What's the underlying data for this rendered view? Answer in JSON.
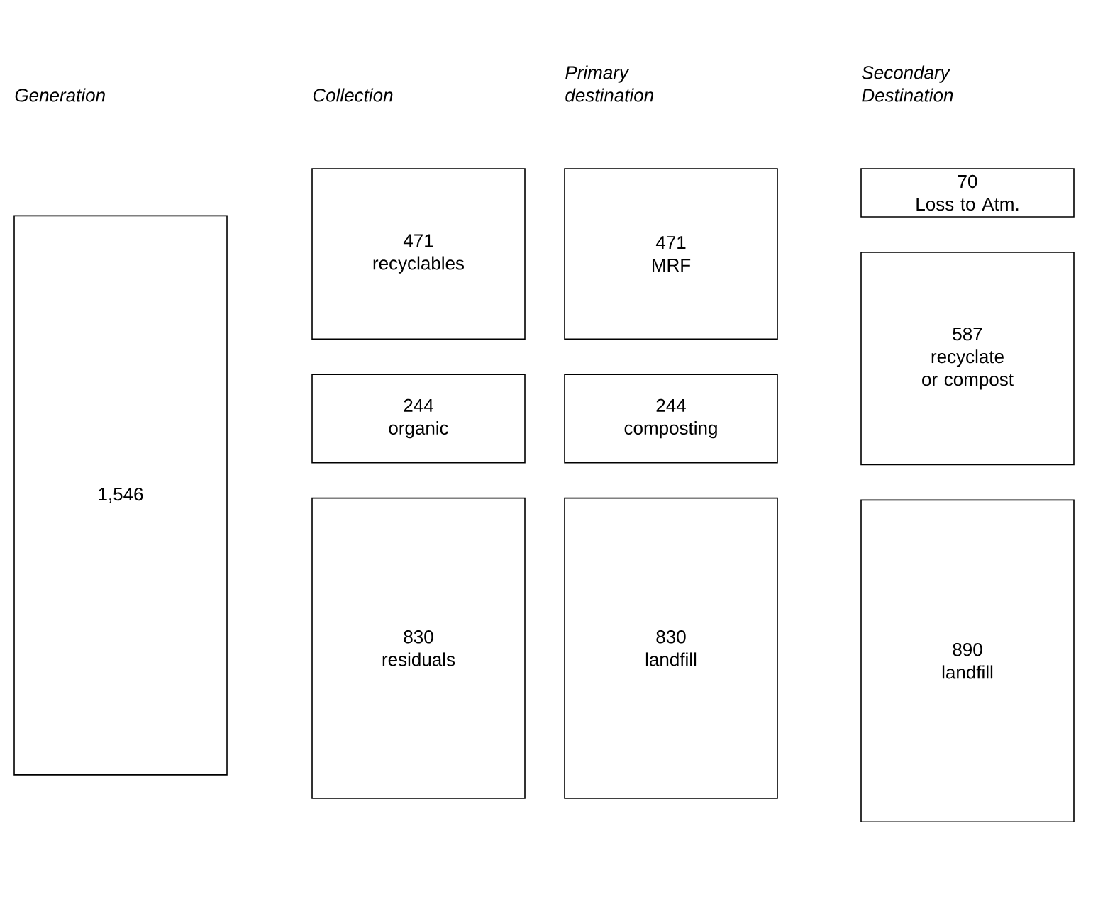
{
  "chart_data": {
    "type": "other",
    "categories": [
      "Generation",
      "Collection",
      "Primary destination",
      "Secondary Destination"
    ],
    "series": [
      {
        "values": [
          null,
          471,
          471,
          70
        ],
        "value_labels": [
          null,
          "471",
          "471",
          "70"
        ]
      },
      {
        "values": [
          null,
          244,
          244,
          587
        ],
        "value_labels": [
          null,
          "244",
          "244",
          "587"
        ]
      },
      {
        "values": [
          1546,
          830,
          830,
          890
        ],
        "value_labels": [
          "1,546",
          "830",
          "830",
          "890"
        ]
      }
    ],
    "annotations": [
      "recyclables",
      "organic",
      "residuals",
      "MRF",
      "composting",
      "landfill",
      "Loss to Atm.",
      "recyclate or compost",
      "landfill"
    ]
  }
}
